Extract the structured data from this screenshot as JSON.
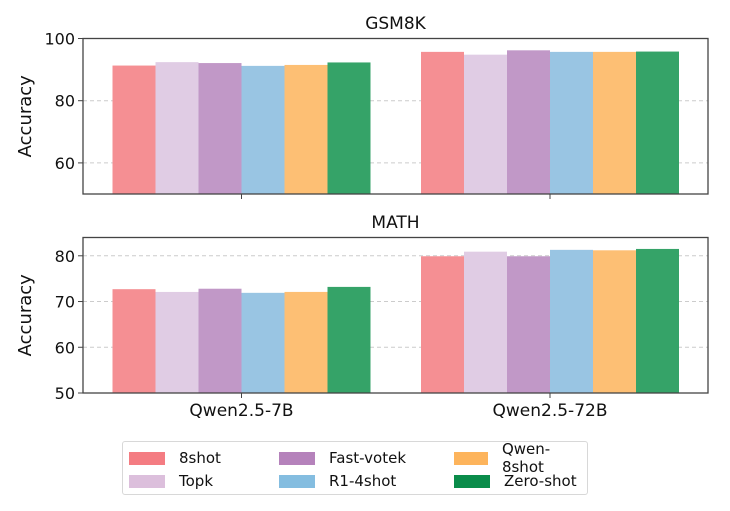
{
  "chart_data": [
    {
      "type": "bar",
      "title": "GSM8K",
      "xlabel": "",
      "ylabel": "Accuracy",
      "ylim": [
        50,
        100
      ],
      "yticks": [
        60,
        80,
        100
      ],
      "grid": true,
      "categories": [
        "Qwen2.5-7B",
        "Qwen2.5-72B"
      ],
      "series": [
        {
          "name": "8shot",
          "values": [
            91.3,
            95.7
          ]
        },
        {
          "name": "Topk",
          "values": [
            92.4,
            94.8
          ]
        },
        {
          "name": "Fast-votek",
          "values": [
            92.1,
            96.2
          ]
        },
        {
          "name": "R1-4shot",
          "values": [
            91.2,
            95.7
          ]
        },
        {
          "name": "Qwen-8shot",
          "values": [
            91.5,
            95.7
          ]
        },
        {
          "name": "Zero-shot",
          "values": [
            92.3,
            95.8
          ]
        }
      ]
    },
    {
      "type": "bar",
      "title": "MATH",
      "xlabel": "",
      "ylabel": "Accuracy",
      "ylim": [
        50,
        84
      ],
      "yticks": [
        50,
        60,
        70,
        80
      ],
      "grid": true,
      "categories": [
        "Qwen2.5-7B",
        "Qwen2.5-72B"
      ],
      "series": [
        {
          "name": "8shot",
          "values": [
            72.7,
            79.9
          ]
        },
        {
          "name": "Topk",
          "values": [
            72.1,
            80.9
          ]
        },
        {
          "name": "Fast-votek",
          "values": [
            72.8,
            79.9
          ]
        },
        {
          "name": "R1-4shot",
          "values": [
            71.9,
            81.3
          ]
        },
        {
          "name": "Qwen-8shot",
          "values": [
            72.1,
            81.2
          ]
        },
        {
          "name": "Zero-shot",
          "values": [
            73.2,
            81.5
          ]
        }
      ]
    }
  ],
  "legend": {
    "placement": "bottom-center",
    "items": [
      {
        "label": "8shot",
        "color": "#f47c82"
      },
      {
        "label": "Topk",
        "color": "#dcbfdc"
      },
      {
        "label": "Fast-votek",
        "color": "#b582bb"
      },
      {
        "label": "R1-4shot",
        "color": "#84bde0"
      },
      {
        "label": "Qwen-8shot",
        "color": "#fdb45c"
      },
      {
        "label": "Zero-shot",
        "color": "#0a8c4a"
      }
    ]
  },
  "bar_colors": [
    "#f58f93",
    "#e0cce4",
    "#c198c7",
    "#99c5e3",
    "#fdbf74",
    "#35a368"
  ]
}
